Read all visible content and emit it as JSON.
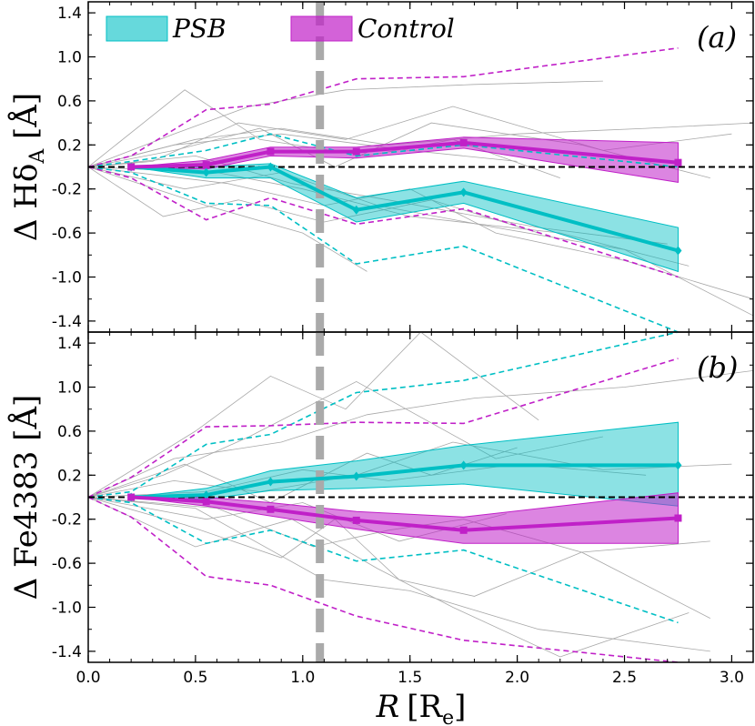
{
  "chart_data": {
    "type": "line",
    "colors": {
      "psb": "#00bfc4",
      "control": "#c020c8",
      "grey": "#a8a8a8",
      "zero_line": "#000000",
      "re_line": "#aaaaaa"
    },
    "legend": {
      "psb": "PSB",
      "control": "Control",
      "placement": "top-left"
    },
    "xaxis": {
      "label_main": "R",
      "label_unit": "[R",
      "label_sub": "e",
      "label_close": "]",
      "range": [
        0.0,
        3.1
      ],
      "ticks": [
        0.0,
        0.5,
        1.0,
        1.5,
        2.0,
        2.5,
        3.0
      ],
      "tick_labels": [
        "0.0",
        "0.5",
        "1.0",
        "1.5",
        "2.0",
        "2.5",
        "3.0"
      ]
    },
    "vertical_marker_x": 1.08,
    "panels": [
      {
        "id": "a",
        "panel_label": "(a)",
        "ylabel_main": "Δ Hδ",
        "ylabel_sub": "A",
        "ylabel_unit": " [Å]",
        "ylim": [
          -1.5,
          1.5
        ],
        "yticks": [
          -1.4,
          -1.0,
          -0.6,
          -0.2,
          0.2,
          0.6,
          1.0,
          1.4
        ],
        "ytick_labels": [
          "-1.4",
          "-1.0",
          "-0.6",
          "-0.2",
          "0.2",
          "0.6",
          "1.0",
          "1.4"
        ],
        "x": [
          0.2,
          0.55,
          0.85,
          1.25,
          1.75,
          2.75
        ],
        "psb": {
          "median": [
            0.0,
            -0.05,
            0.0,
            -0.39,
            -0.23,
            -0.76
          ],
          "band_low": [
            0.0,
            -0.1,
            -0.1,
            -0.5,
            -0.33,
            -0.95
          ],
          "band_high": [
            0.0,
            0.0,
            0.03,
            -0.28,
            -0.13,
            -0.55
          ],
          "p_low": [
            -0.05,
            -0.33,
            -0.35,
            -0.88,
            -0.72,
            -1.5
          ],
          "p_high": [
            0.05,
            0.15,
            0.3,
            0.1,
            0.2,
            0.0
          ]
        },
        "control": {
          "median": [
            0.0,
            0.02,
            0.14,
            0.14,
            0.22,
            0.04
          ],
          "band_low": [
            0.0,
            -0.02,
            0.1,
            0.08,
            0.17,
            -0.14
          ],
          "band_high": [
            0.0,
            0.06,
            0.18,
            0.18,
            0.27,
            0.22
          ],
          "p_low": [
            -0.1,
            -0.48,
            -0.28,
            -0.52,
            -0.38,
            -1.0
          ],
          "p_high": [
            0.1,
            0.52,
            0.57,
            0.8,
            0.82,
            1.08
          ]
        },
        "grey_lines": [
          {
            "x": [
              0.0,
              0.45,
              0.8,
              1.3,
              1.7,
              2.2
            ],
            "y": [
              0.0,
              0.7,
              0.25,
              0.1,
              0.25,
              -0.1
            ]
          },
          {
            "x": [
              0.0,
              0.4,
              0.75,
              1.2,
              1.8,
              2.4
            ],
            "y": [
              0.0,
              0.3,
              0.55,
              0.7,
              0.75,
              0.78
            ]
          },
          {
            "x": [
              0.0,
              0.35,
              0.7,
              1.1,
              1.6,
              2.1
            ],
            "y": [
              0.0,
              -0.45,
              -0.3,
              -0.5,
              -0.3,
              -0.6
            ]
          },
          {
            "x": [
              0.0,
              0.5,
              0.9,
              1.4,
              2.0,
              2.6,
              3.1
            ],
            "y": [
              0.0,
              0.25,
              0.35,
              0.2,
              0.3,
              0.35,
              0.4
            ]
          },
          {
            "x": [
              0.0,
              0.45,
              0.9,
              1.35,
              1.9,
              2.5,
              3.1
            ],
            "y": [
              0.0,
              -0.2,
              -0.05,
              -0.35,
              -0.55,
              -0.75,
              -1.35
            ]
          },
          {
            "x": [
              0.0,
              0.6,
              1.0,
              1.5,
              2.2,
              2.8
            ],
            "y": [
              0.0,
              -0.05,
              -0.2,
              -0.45,
              -0.6,
              -0.9
            ]
          },
          {
            "x": [
              0.0,
              0.4,
              0.8,
              1.15,
              1.6,
              2.3,
              2.9
            ],
            "y": [
              0.0,
              0.15,
              0.35,
              0.0,
              0.4,
              0.2,
              -0.1
            ]
          },
          {
            "x": [
              0.0,
              0.55,
              1.0,
              1.3
            ],
            "y": [
              0.0,
              -0.35,
              -0.6,
              -0.95
            ]
          },
          {
            "x": [
              0.0,
              0.3,
              0.7,
              1.2,
              1.7,
              2.4,
              3.0
            ],
            "y": [
              0.0,
              0.05,
              0.4,
              0.25,
              0.55,
              0.15,
              0.3
            ]
          },
          {
            "x": [
              0.0,
              0.5,
              0.95,
              1.4,
              2.1,
              2.7
            ],
            "y": [
              0.0,
              0.1,
              -0.15,
              -0.3,
              -0.55,
              -0.7
            ]
          },
          {
            "x": [
              0.0,
              0.65,
              1.1,
              1.5,
              1.9,
              2.5,
              3.1
            ],
            "y": [
              0.0,
              -0.15,
              -0.35,
              -0.2,
              -0.6,
              -0.85,
              -1.2
            ]
          },
          {
            "x": [
              0.0,
              0.4,
              0.9,
              1.5,
              2.0
            ],
            "y": [
              0.0,
              0.2,
              0.3,
              0.15,
              0.05
            ]
          }
        ]
      },
      {
        "id": "b",
        "panel_label": "(b)",
        "ylabel_main": "Δ Fe4383",
        "ylabel_sub": "",
        "ylabel_unit": " [Å]",
        "ylim": [
          -1.5,
          1.5
        ],
        "yticks": [
          -1.4,
          -1.0,
          -0.6,
          -0.2,
          0.2,
          0.6,
          1.0,
          1.4
        ],
        "ytick_labels": [
          "-1.4",
          "-1.0",
          "-0.6",
          "-0.2",
          "0.2",
          "0.6",
          "1.0",
          "1.4"
        ],
        "x": [
          0.2,
          0.55,
          0.85,
          1.25,
          1.75,
          2.75
        ],
        "psb": {
          "median": [
            0.0,
            0.02,
            0.14,
            0.19,
            0.29,
            0.29
          ],
          "band_low": [
            0.0,
            -0.02,
            0.06,
            0.08,
            0.12,
            -0.08
          ],
          "band_high": [
            0.0,
            0.08,
            0.24,
            0.33,
            0.47,
            0.68
          ],
          "p_low": [
            -0.05,
            -0.42,
            -0.3,
            -0.58,
            -0.48,
            -1.14
          ],
          "p_high": [
            0.05,
            0.48,
            0.57,
            0.95,
            1.06,
            1.5
          ]
        },
        "control": {
          "median": [
            0.0,
            -0.04,
            -0.11,
            -0.21,
            -0.3,
            -0.19
          ],
          "band_low": [
            0.0,
            -0.08,
            -0.17,
            -0.29,
            -0.42,
            -0.42
          ],
          "band_high": [
            0.0,
            0.0,
            -0.05,
            -0.13,
            -0.18,
            0.04
          ],
          "p_low": [
            -0.18,
            -0.72,
            -0.8,
            -1.08,
            -1.3,
            -1.5
          ],
          "p_high": [
            0.18,
            0.64,
            0.65,
            0.68,
            0.67,
            1.26
          ]
        },
        "grey_lines": [
          {
            "x": [
              0.0,
              0.5,
              0.85,
              1.2,
              1.55,
              2.1
            ],
            "y": [
              0.0,
              0.6,
              1.1,
              0.8,
              1.5,
              0.7
            ]
          },
          {
            "x": [
              0.0,
              0.4,
              0.9,
              1.3,
              1.8,
              2.5,
              3.1
            ],
            "y": [
              0.0,
              0.35,
              0.5,
              0.75,
              0.9,
              1.0,
              1.15
            ]
          },
          {
            "x": [
              0.0,
              0.35,
              0.75,
              1.25,
              1.9,
              2.4
            ],
            "y": [
              0.0,
              0.2,
              0.55,
              1.05,
              0.35,
              0.55
            ]
          },
          {
            "x": [
              0.0,
              0.45,
              0.9,
              1.15,
              1.45,
              1.8,
              2.3,
              2.9
            ],
            "y": [
              0.0,
              -0.25,
              -0.55,
              -0.2,
              -0.75,
              -0.9,
              -0.5,
              -1.1
            ]
          },
          {
            "x": [
              0.0,
              0.5,
              0.95,
              1.35,
              1.7,
              2.2,
              2.8
            ],
            "y": [
              0.0,
              -0.45,
              -0.2,
              -0.65,
              -1.0,
              -1.45,
              -1.05
            ]
          },
          {
            "x": [
              0.0,
              0.55,
              1.0,
              1.4,
              2.0,
              2.6
            ],
            "y": [
              0.0,
              0.05,
              0.25,
              0.15,
              0.3,
              0.2
            ]
          },
          {
            "x": [
              0.0,
              0.6,
              1.05,
              1.4,
              1.75,
              2.3,
              2.9
            ],
            "y": [
              0.0,
              -0.1,
              -0.45,
              -0.3,
              -0.2,
              -0.5,
              -0.4
            ]
          },
          {
            "x": [
              0.0,
              0.45,
              0.85,
              1.3,
              1.6,
              2.0
            ],
            "y": [
              0.0,
              0.3,
              -0.05,
              0.4,
              0.2,
              0.45
            ]
          },
          {
            "x": [
              0.0,
              0.5,
              1.1,
              1.5,
              2.1,
              2.9
            ],
            "y": [
              0.0,
              -0.1,
              -0.75,
              -0.85,
              -1.2,
              -1.4
            ]
          },
          {
            "x": [
              0.0,
              0.4,
              0.8,
              1.25,
              1.7,
              2.4,
              3.0
            ],
            "y": [
              0.0,
              0.15,
              0.05,
              0.2,
              0.5,
              0.25,
              0.3
            ]
          },
          {
            "x": [
              0.0,
              0.55,
              1.0,
              1.45,
              1.95
            ],
            "y": [
              0.0,
              -0.2,
              -0.05,
              -0.4,
              -0.15
            ]
          }
        ]
      }
    ]
  }
}
